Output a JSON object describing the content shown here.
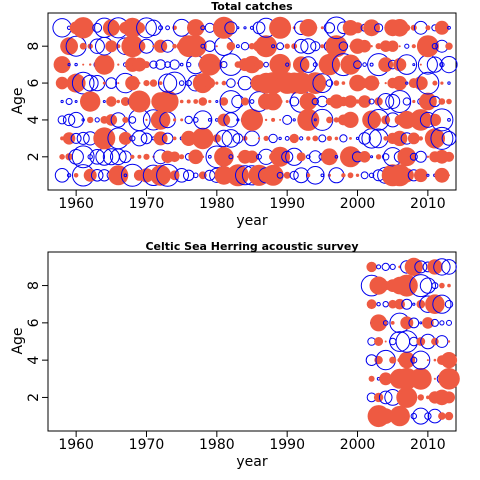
{
  "colors": {
    "positive": "#ee5a42",
    "negative": "#0000ee",
    "axis": "#000000"
  },
  "chart_data": [
    {
      "type": "scatter",
      "subtype": "bubble-residuals",
      "title": "Total catches",
      "xlabel": "year",
      "ylabel": "Age",
      "xlim": [
        1956,
        2014
      ],
      "ylim": [
        0.2,
        9.8
      ],
      "xticks": [
        1960,
        1970,
        1980,
        1990,
        2000,
        2010
      ],
      "yticks": [
        2,
        4,
        6,
        8
      ],
      "years": [
        1958,
        2013
      ],
      "ages": [
        1,
        9
      ],
      "grid": false,
      "legend": "none",
      "encoding": "circle area = residual magnitude; filled red = positive, open blue = negative"
    },
    {
      "type": "scatter",
      "subtype": "bubble-residuals",
      "title": "Celtic Sea Herring acoustic survey",
      "xlabel": "year",
      "ylabel": "Age",
      "xlim": [
        1956,
        2014
      ],
      "ylim": [
        0.2,
        9.8
      ],
      "xticks": [
        1960,
        1970,
        1980,
        1990,
        2000,
        2010
      ],
      "yticks": [
        2,
        4,
        6,
        8
      ],
      "years": [
        2002,
        2013
      ],
      "ages": [
        1,
        9
      ],
      "grid": false,
      "legend": "none",
      "encoding": "circle area = residual magnitude; filled red = positive, open blue = negative"
    }
  ]
}
